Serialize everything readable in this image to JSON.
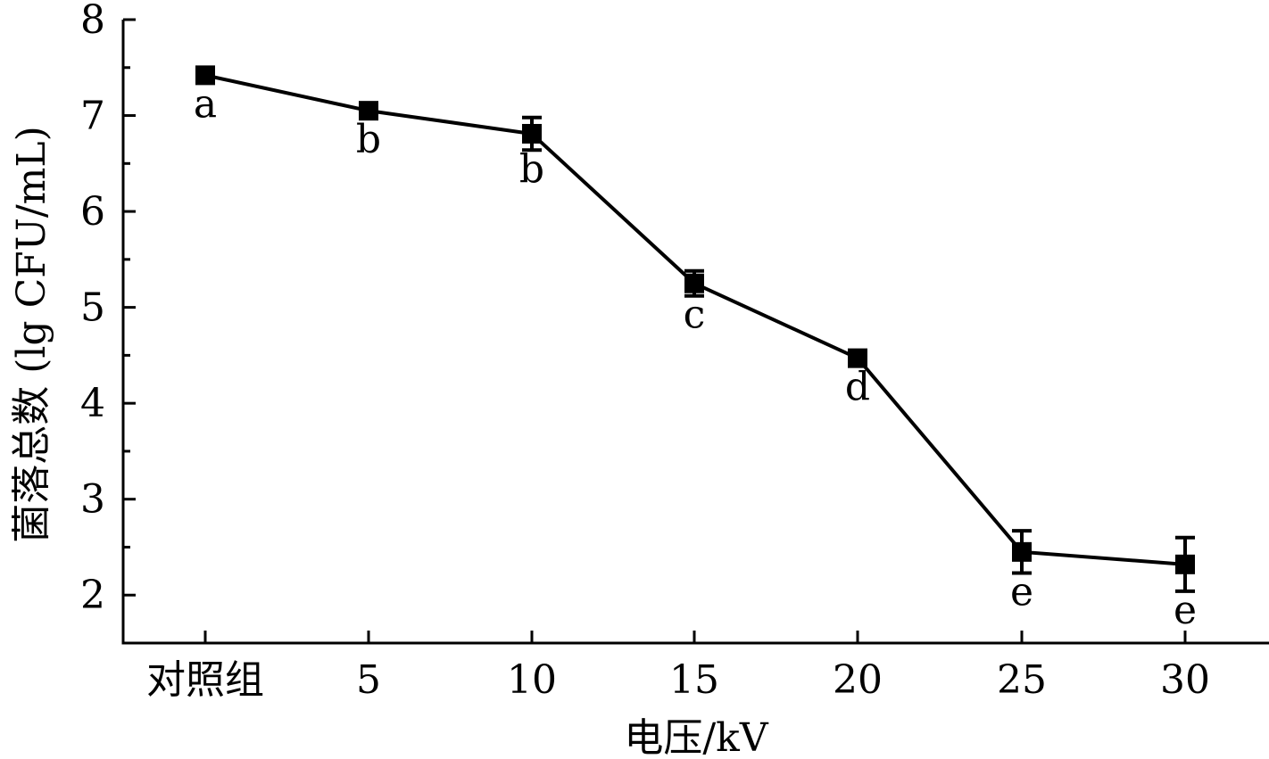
{
  "chart_data": {
    "type": "line",
    "title": "",
    "xlabel": "电压/kV",
    "ylabel": "菌落总数 (lg CFU/mL)",
    "categories": [
      "对照组",
      "5",
      "10",
      "15",
      "20",
      "25",
      "30"
    ],
    "ylim": [
      1.5,
      8
    ],
    "yticks": [
      "2",
      "3",
      "4",
      "5",
      "6",
      "7",
      "8"
    ],
    "grid": false,
    "legend": "none",
    "series": [
      {
        "values": [
          7.42,
          7.05,
          6.81,
          5.25,
          4.47,
          2.45,
          2.32
        ],
        "errors": [
          0.05,
          0.04,
          0.17,
          0.13,
          0.07,
          0.22,
          0.28
        ],
        "letters": [
          "a",
          "b",
          "b",
          "c",
          "d",
          "e",
          "e"
        ]
      }
    ],
    "line_color": "#000000",
    "marker": "square"
  }
}
